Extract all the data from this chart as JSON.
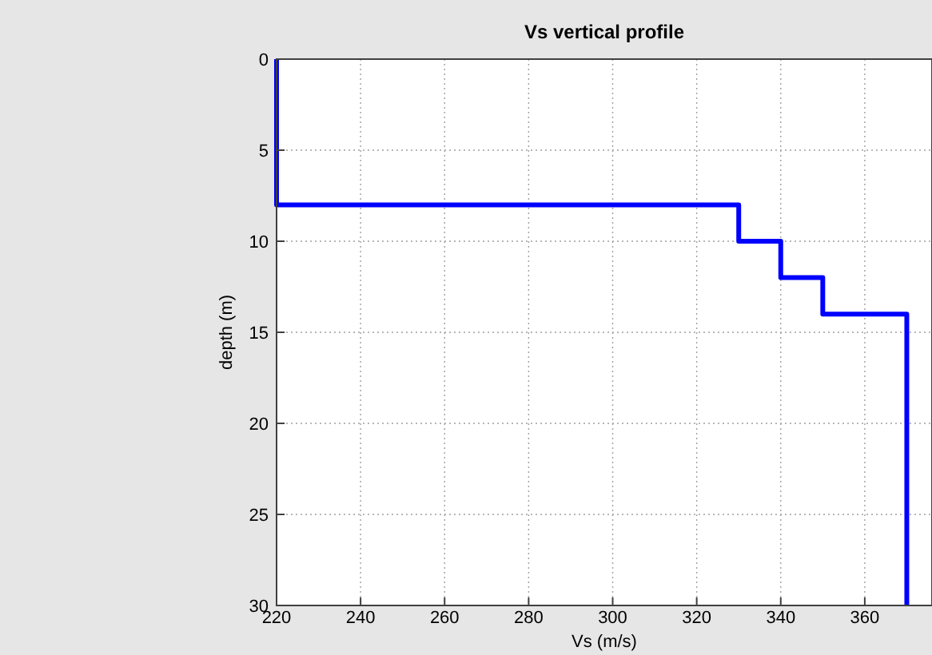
{
  "chart_data": {
    "type": "line",
    "title": "Vs vertical profile",
    "xlabel": "Vs (m/s)",
    "ylabel": "depth (m)",
    "xlim": [
      220,
      376
    ],
    "xticks": [
      220,
      240,
      260,
      280,
      300,
      320,
      340,
      360
    ],
    "ylim": [
      30,
      0
    ],
    "yticks": [
      0,
      5,
      10,
      15,
      20,
      25,
      30
    ],
    "grid": true,
    "marker": "none",
    "line_style": "solid",
    "series": [
      {
        "color": "#0000ff",
        "x": [
          220,
          220,
          330,
          330,
          340,
          340,
          350,
          350,
          370,
          370
        ],
        "values": [
          0,
          8,
          8,
          10,
          10,
          12,
          12,
          14,
          14,
          30
        ]
      }
    ]
  }
}
